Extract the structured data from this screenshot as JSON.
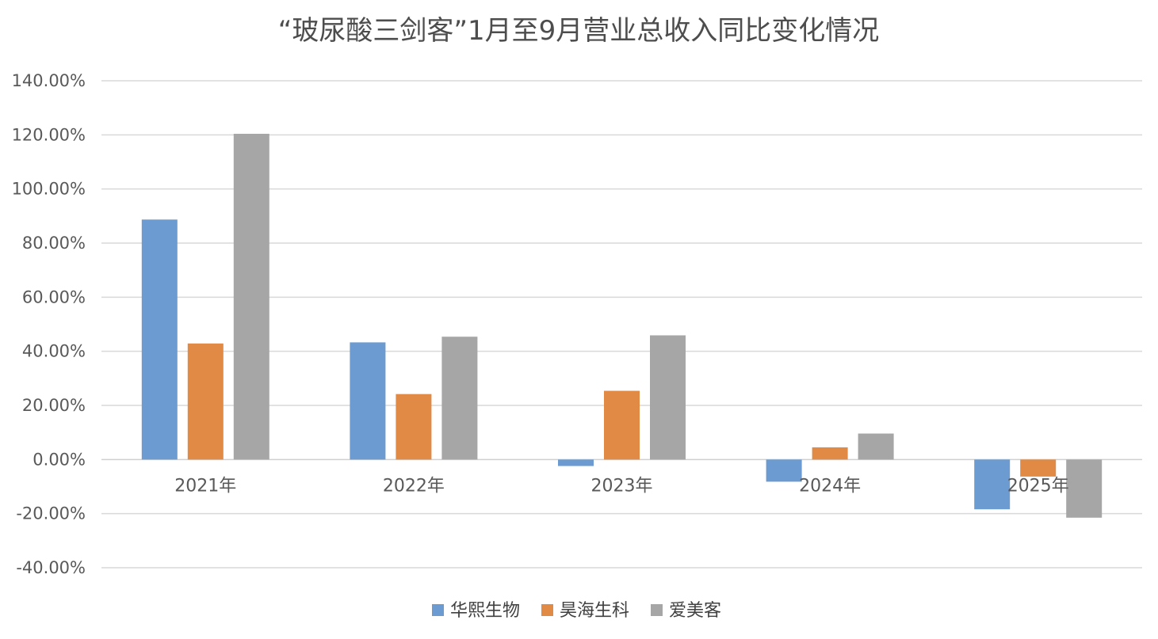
{
  "chart_data": {
    "type": "bar",
    "title": "“玻尿酸三剑客”1月至9月营业总收入同比变化情况",
    "xlabel": "",
    "ylabel": "",
    "categories": [
      "2021年",
      "2022年",
      "2023年",
      "2024年",
      "2025年"
    ],
    "series": [
      {
        "name": "华熙生物",
        "color": "#6b9bd0",
        "values": [
          88.7,
          43.3,
          -2.4,
          -8.2,
          -18.4
        ]
      },
      {
        "name": "昊海生科",
        "color": "#e08a45",
        "values": [
          42.9,
          24.2,
          25.4,
          4.5,
          -6.3
        ]
      },
      {
        "name": "爱美客",
        "color": "#a6a6a6",
        "values": [
          120.4,
          45.4,
          45.9,
          9.6,
          -21.5
        ]
      }
    ],
    "ylim": [
      -40,
      140
    ],
    "yticks": [
      140,
      120,
      100,
      80,
      60,
      40,
      20,
      0,
      -20,
      -40
    ],
    "ytick_labels": [
      "140.00%",
      "120.00%",
      "100.00%",
      "80.00%",
      "60.00%",
      "40.00%",
      "20.00%",
      "0.00%",
      "-20.00%",
      "-40.00%"
    ],
    "grid": true,
    "legend_position": "bottom"
  }
}
